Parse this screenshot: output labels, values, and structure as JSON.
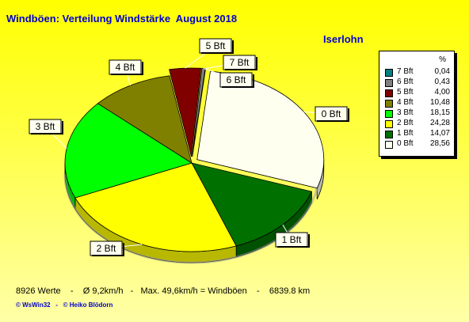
{
  "title": "Windböen: Verteilung Windstärke  August 2018",
  "station": "Iserlohn",
  "legend": {
    "unit": "%"
  },
  "footer": {
    "stats": "8926 Werte    -    Ø 9,2km/h   -   Max. 49,6km/h = Windböen    -    6839.8 km",
    "copyright": "© WsWin32   -   © Heiko Blödorn"
  },
  "chart_data": {
    "type": "pie",
    "categories": [
      "0 Bft",
      "1 Bft",
      "2 Bft",
      "3 Bft",
      "4 Bft",
      "5 Bft",
      "6 Bft",
      "7 Bft"
    ],
    "values": [
      28.56,
      14.07,
      24.28,
      18.15,
      10.48,
      4.0,
      0.43,
      0.04
    ],
    "value_labels": [
      "28,56",
      "14,07",
      "24,28",
      "18,15",
      "10,48",
      "4,00",
      "0,43",
      "0,04"
    ],
    "colors": [
      "#fffff0",
      "#007000",
      "#ffff00",
      "#00ff00",
      "#808000",
      "#800000",
      "#808080",
      "#008080"
    ],
    "legend_order": [
      "7 Bft",
      "6 Bft",
      "5 Bft",
      "4 Bft",
      "3 Bft",
      "2 Bft",
      "1 Bft",
      "0 Bft"
    ],
    "legend_placement": "right",
    "style": "3d-exploded"
  }
}
